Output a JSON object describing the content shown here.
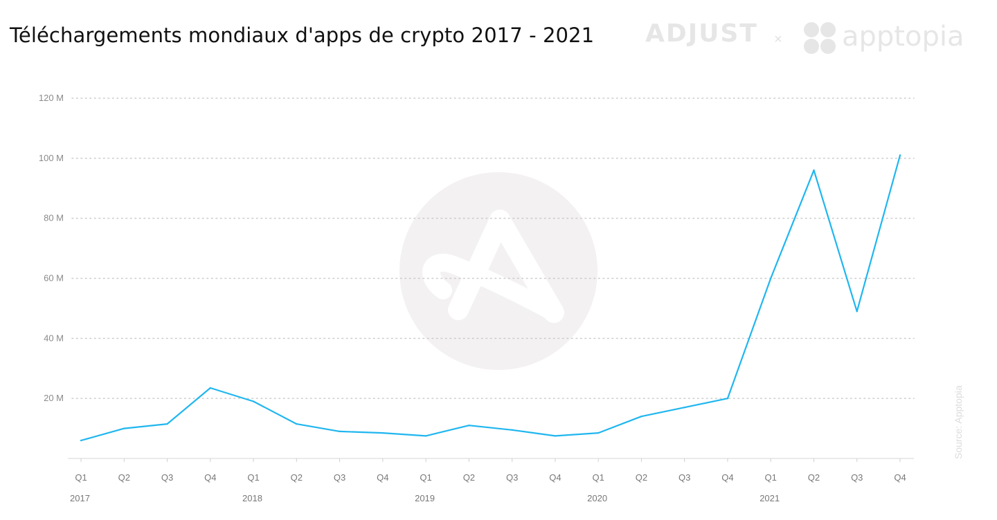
{
  "header": {
    "title": "Téléchargements mondiaux d'apps de crypto 2017 - 2021",
    "brand_adjust": "ADJUST",
    "brand_separator": "×",
    "brand_apptopia": "apptopia"
  },
  "source": "Source: Apptopia",
  "colors": {
    "line": "#1fb6ef",
    "grid": "#c9c9c9",
    "watermark": "#f3f1f1",
    "brand": "#e6e6e6"
  },
  "icons": [
    "adjust-watermark-icon",
    "apptopia-logo-icon"
  ],
  "chart_data": {
    "type": "line",
    "title": "Téléchargements mondiaux d'apps de crypto 2017 - 2021",
    "x": [
      "Q1",
      "Q2",
      "Q3",
      "Q4",
      "Q1",
      "Q2",
      "Q3",
      "Q4",
      "Q1",
      "Q2",
      "Q3",
      "Q4",
      "Q1",
      "Q2",
      "Q3",
      "Q4",
      "Q1",
      "Q2",
      "Q3",
      "Q4"
    ],
    "year_labels": [
      {
        "label": "2017",
        "index": 0
      },
      {
        "label": "2018",
        "index": 4
      },
      {
        "label": "2019",
        "index": 8
      },
      {
        "label": "2020",
        "index": 12
      },
      {
        "label": "2021",
        "index": 16
      }
    ],
    "series": [
      {
        "values": [
          6,
          10,
          11.5,
          23.5,
          19,
          11.5,
          9,
          8.5,
          7.5,
          11,
          9.5,
          7.5,
          8.5,
          14,
          17,
          20,
          60,
          96,
          49,
          101
        ]
      }
    ],
    "yticks": [
      {
        "value": 20,
        "label": "20 M"
      },
      {
        "value": 40,
        "label": "40 M"
      },
      {
        "value": 60,
        "label": "60 M"
      },
      {
        "value": 80,
        "label": "80 M"
      },
      {
        "value": 100,
        "label": "100 M"
      },
      {
        "value": 120,
        "label": "120 M"
      }
    ],
    "ylim": [
      0,
      120
    ],
    "grid": "horizontal dotted",
    "legend": "none"
  }
}
